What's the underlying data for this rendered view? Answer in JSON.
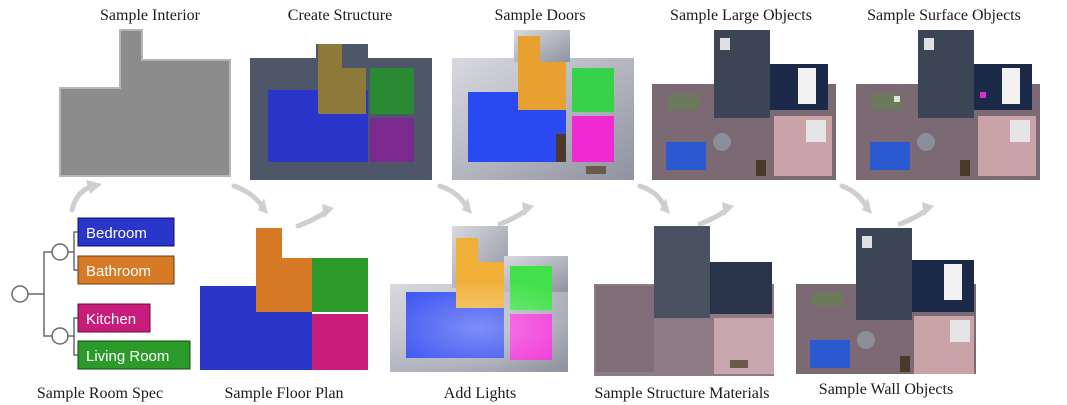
{
  "stages": {
    "sample_interior": "Sample Interior",
    "create_structure": "Create Structure",
    "sample_doors": "Sample Doors",
    "sample_large_objects": "Sample Large Objects",
    "sample_surface_objects": "Sample Surface Objects",
    "sample_room_spec": "Sample Room Spec",
    "sample_floor_plan": "Sample Floor Plan",
    "add_lights": "Add Lights",
    "sample_structure_materials": "Sample Structure Materials",
    "sample_wall_objects": "Sample Wall Objects"
  },
  "room_spec": {
    "rooms": [
      {
        "label": "Bedroom",
        "color": "#2a35c9"
      },
      {
        "label": "Bathroom",
        "color": "#d67a26"
      },
      {
        "label": "Kitchen",
        "color": "#c81c7a"
      },
      {
        "label": "Living Room",
        "color": "#2c9a2a"
      }
    ]
  },
  "colors": {
    "bedroom": "#2a35c9",
    "bathroom": "#d67a26",
    "kitchen": "#c81c7a",
    "living_room": "#2c9a2a",
    "interior_gray": "#8c8c8c",
    "wall_dark": "#4e566a",
    "arrow": "#cfcfcf",
    "floor_wood": "#8b7680",
    "floor_dark": "#3c4555"
  },
  "icons": {
    "flow_arrow": "curved-arrow-icon",
    "tree_node": "circle-node-icon"
  }
}
